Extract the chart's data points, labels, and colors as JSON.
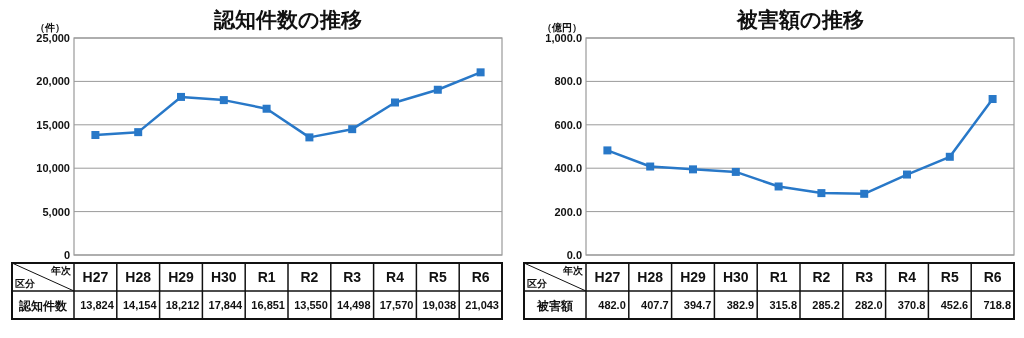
{
  "chart_data": [
    {
      "type": "line",
      "title": "認知件数の推移",
      "ylabel": "（件）",
      "annotations": [
        "年次",
        "区分"
      ],
      "categories": [
        "H27",
        "H28",
        "H29",
        "H30",
        "R1",
        "R2",
        "R3",
        "R4",
        "R5",
        "R6"
      ],
      "series": [
        {
          "name": "認知件数",
          "color": "#2878c8",
          "values": [
            13824,
            14154,
            18212,
            17844,
            16851,
            13550,
            14498,
            17570,
            19038,
            21043
          ],
          "value_labels": [
            "13,824",
            "14,154",
            "18,212",
            "17,844",
            "16,851",
            "13,550",
            "14,498",
            "17,570",
            "19,038",
            "21,043"
          ]
        }
      ],
      "ylim": [
        0,
        25000
      ],
      "yticks": [
        {
          "value": 0,
          "label": "0"
        },
        {
          "value": 5000,
          "label": "5,000"
        },
        {
          "value": 10000,
          "label": "10,000"
        },
        {
          "value": 15000,
          "label": "15,000"
        },
        {
          "value": 20000,
          "label": "20,000"
        },
        {
          "value": 25000,
          "label": "25,000"
        }
      ],
      "grid": "y",
      "marker": "square",
      "line_style": "solid"
    },
    {
      "type": "line",
      "title": "被害額の推移",
      "ylabel": "（億円）",
      "annotations": [
        "年次",
        "区分"
      ],
      "categories": [
        "H27",
        "H28",
        "H29",
        "H30",
        "R1",
        "R2",
        "R3",
        "R4",
        "R5",
        "R6"
      ],
      "series": [
        {
          "name": "被害額",
          "color": "#2878c8",
          "values": [
            482.0,
            407.7,
            394.7,
            382.9,
            315.8,
            285.2,
            282.0,
            370.8,
            452.6,
            718.8
          ],
          "value_labels": [
            "482.0",
            "407.7",
            "394.7",
            "382.9",
            "315.8",
            "285.2",
            "282.0",
            "370.8",
            "452.6",
            "718.8"
          ]
        }
      ],
      "ylim": [
        0,
        1000
      ],
      "yticks": [
        {
          "value": 0,
          "label": "0.0"
        },
        {
          "value": 200,
          "label": "200.0"
        },
        {
          "value": 400,
          "label": "400.0"
        },
        {
          "value": 600,
          "label": "600.0"
        },
        {
          "value": 800,
          "label": "800.0"
        },
        {
          "value": 1000,
          "label": "1,000.0"
        }
      ],
      "grid": "y",
      "marker": "square",
      "line_style": "solid"
    }
  ]
}
